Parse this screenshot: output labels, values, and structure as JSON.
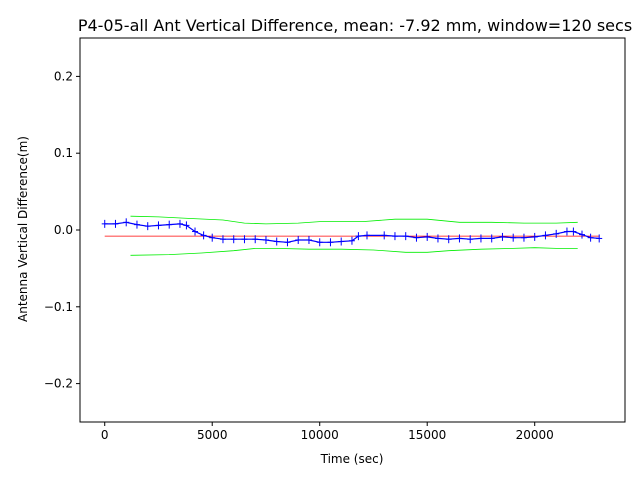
{
  "chart_data": {
    "type": "line",
    "title": "P4-05-all Ant Vertical Difference, mean: -7.92 mm, window=120 secs",
    "xlabel": "Time (sec)",
    "ylabel": "Antenna Vertical Difference(m)",
    "xlim": [
      -1150,
      24200
    ],
    "ylim": [
      -0.25,
      0.25
    ],
    "xticks": [
      0,
      5000,
      10000,
      15000,
      20000
    ],
    "xtick_labels": [
      "0",
      "5000",
      "10000",
      "15000",
      "20000"
    ],
    "yticks": [
      0.2,
      0.1,
      0.0,
      -0.1,
      -0.2
    ],
    "ytick_labels": [
      "0.2",
      "0.1",
      "0.0",
      "−0.1",
      "−0.2"
    ],
    "grid": false,
    "colors": {
      "data": "#0000ff",
      "mean": "#ff0000",
      "upper": "#00ee00",
      "lower": "#00ee00"
    },
    "series": [
      {
        "role": "data",
        "style": "line-with-plus-markers",
        "x": [
          0,
          500,
          1000,
          1500,
          2000,
          2500,
          3000,
          3500,
          3800,
          4200,
          4600,
          5000,
          5500,
          6000,
          6500,
          7000,
          7500,
          8000,
          8500,
          9000,
          9500,
          10000,
          10500,
          11000,
          11500,
          11800,
          12200,
          13000,
          13500,
          14000,
          14500,
          15000,
          15500,
          16000,
          16500,
          17000,
          17500,
          18000,
          18500,
          19000,
          19500,
          20000,
          20500,
          21000,
          21500,
          21800,
          22200,
          22600,
          23000
        ],
        "y": [
          0.008,
          0.008,
          0.01,
          0.007,
          0.005,
          0.006,
          0.007,
          0.008,
          0.006,
          -0.002,
          -0.007,
          -0.01,
          -0.012,
          -0.012,
          -0.012,
          -0.012,
          -0.013,
          -0.015,
          -0.016,
          -0.013,
          -0.013,
          -0.016,
          -0.016,
          -0.015,
          -0.014,
          -0.008,
          -0.007,
          -0.007,
          -0.008,
          -0.008,
          -0.01,
          -0.009,
          -0.011,
          -0.012,
          -0.011,
          -0.012,
          -0.011,
          -0.011,
          -0.009,
          -0.01,
          -0.01,
          -0.009,
          -0.007,
          -0.005,
          -0.002,
          -0.002,
          -0.006,
          -0.01,
          -0.011
        ]
      },
      {
        "role": "mean",
        "style": "line",
        "x": [
          0,
          23000
        ],
        "y": [
          -0.008,
          -0.008
        ]
      },
      {
        "role": "upper",
        "style": "line",
        "x": [
          1200,
          2500,
          4000,
          5500,
          6500,
          7500,
          9000,
          10000,
          12000,
          13500,
          15000,
          16500,
          18000,
          19500,
          21000,
          22000
        ],
        "y": [
          0.018,
          0.017,
          0.015,
          0.013,
          0.009,
          0.008,
          0.009,
          0.011,
          0.011,
          0.014,
          0.014,
          0.01,
          0.01,
          0.009,
          0.009,
          0.01
        ]
      },
      {
        "role": "lower",
        "style": "line",
        "x": [
          1200,
          3000,
          4500,
          6000,
          7000,
          8000,
          9500,
          11000,
          12500,
          14000,
          15000,
          16000,
          17500,
          19000,
          20000,
          21000,
          22000
        ],
        "y": [
          -0.033,
          -0.032,
          -0.03,
          -0.027,
          -0.024,
          -0.024,
          -0.025,
          -0.025,
          -0.026,
          -0.029,
          -0.029,
          -0.027,
          -0.025,
          -0.024,
          -0.023,
          -0.024,
          -0.024
        ]
      }
    ]
  }
}
